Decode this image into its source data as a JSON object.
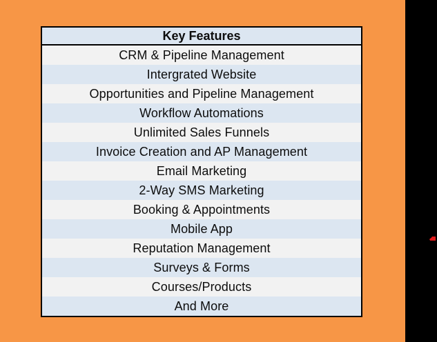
{
  "slide": {
    "background_color": "#f79646",
    "side_strip_color": "#000000"
  },
  "features_table": {
    "header": "Key Features",
    "rows": [
      "CRM & Pipeline Management",
      "Intergrated Website",
      "Opportunities and Pipeline Management",
      "Workflow Automations",
      "Unlimited Sales Funnels",
      "Invoice Creation and AP Management",
      "Email Marketing",
      "2-Way SMS Marketing",
      "Booking & Appointments",
      "Mobile App",
      "Reputation Management",
      "Surveys & Forms",
      "Courses/Products",
      "And More"
    ],
    "style": {
      "header_bg": "#dce6f1",
      "row_bg": "#f2f2f2",
      "row_alt_bg": "#dce6f1",
      "border_color": "#000000",
      "text_color": "#0d0d0d"
    }
  },
  "red_mark": {
    "color": "#e01b1b"
  }
}
